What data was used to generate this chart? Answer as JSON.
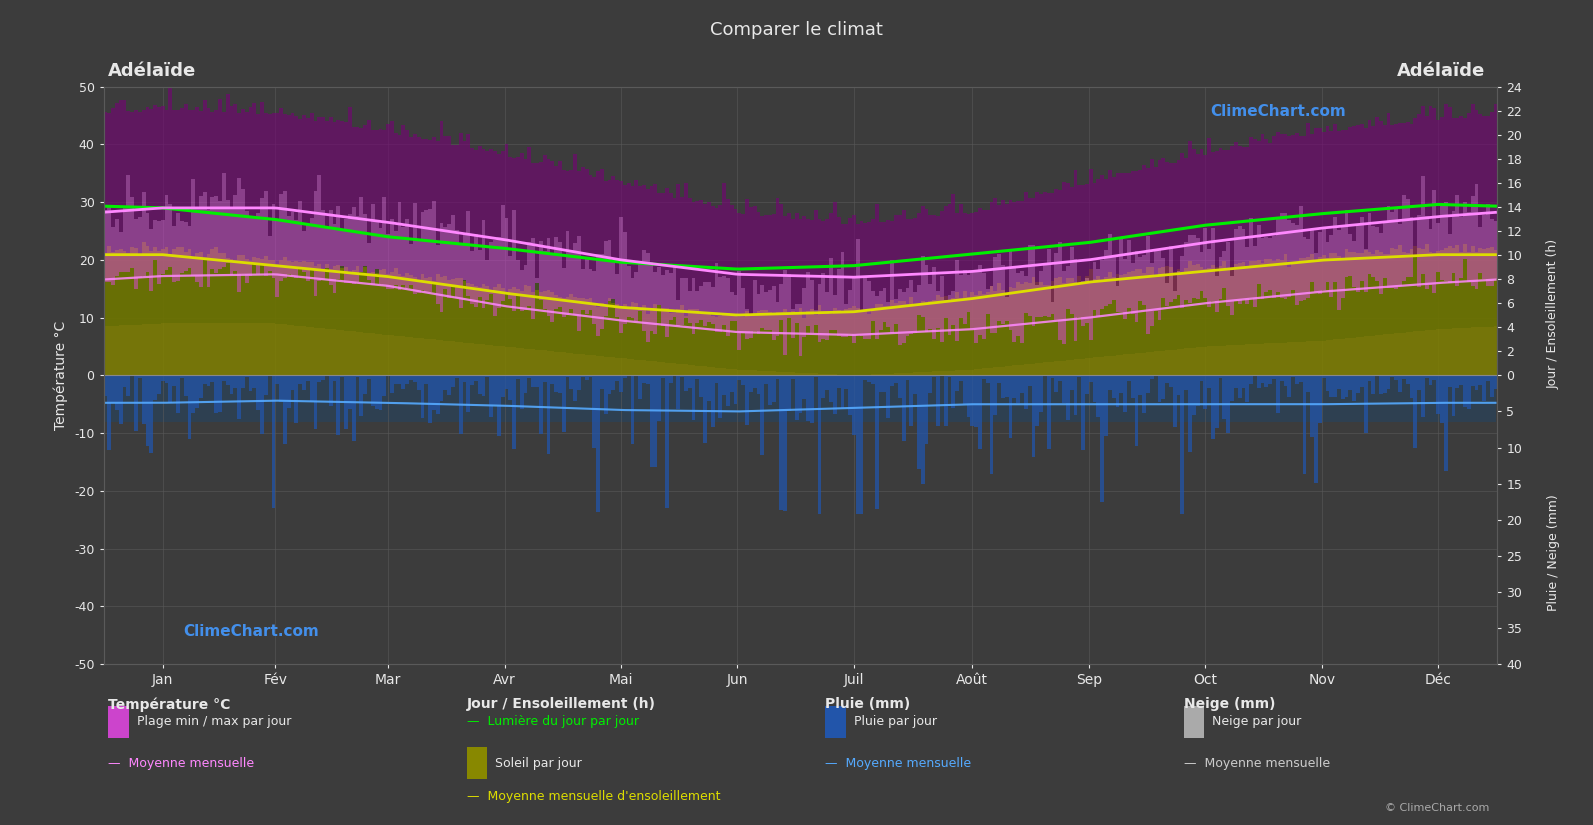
{
  "title": "Comparer le climat",
  "city_left": "Adélaïde",
  "city_right": "Adélaïde",
  "months": [
    "Jan",
    "Fév",
    "Mar",
    "Avr",
    "Mai",
    "Jun",
    "Juil",
    "Août",
    "Sep",
    "Oct",
    "Nov",
    "Déc"
  ],
  "days_per_month": [
    31,
    28,
    31,
    30,
    31,
    30,
    31,
    31,
    30,
    31,
    30,
    31
  ],
  "temp_ylim": [
    -50,
    50
  ],
  "bg_color": "#3c3c3c",
  "plot_bg_color": "#3c3c3c",
  "grid_color": "#5a5a5a",
  "text_color": "#e8e8e8",
  "temp_mean_monthly": [
    29.0,
    29.0,
    26.5,
    23.5,
    20.0,
    17.5,
    17.0,
    18.0,
    20.0,
    23.0,
    25.5,
    27.5
  ],
  "temp_min_monthly": [
    17.2,
    17.5,
    15.5,
    12.0,
    9.5,
    7.5,
    7.0,
    8.0,
    10.0,
    12.5,
    14.5,
    16.0
  ],
  "temp_max_monthly": [
    29.5,
    29.8,
    27.0,
    23.5,
    19.5,
    16.0,
    15.5,
    17.0,
    19.5,
    22.5,
    25.5,
    28.0
  ],
  "temp_abs_max_monthly": [
    46,
    45,
    42,
    38,
    33,
    28,
    26,
    28,
    33,
    38,
    42,
    44
  ],
  "temp_abs_min_monthly": [
    9,
    9,
    7,
    5,
    3,
    1,
    0,
    1,
    3,
    5,
    6,
    8
  ],
  "daylight_monthly": [
    14.5,
    13.5,
    12.0,
    11.0,
    9.8,
    9.2,
    9.5,
    10.5,
    11.5,
    13.0,
    14.0,
    14.8
  ],
  "sunshine_mean_monthly": [
    11.0,
    10.0,
    9.0,
    7.5,
    6.2,
    5.5,
    5.8,
    7.0,
    8.5,
    9.5,
    10.5,
    11.0
  ],
  "sunshine_daily_monthly": [
    11.5,
    10.5,
    9.5,
    8.0,
    6.5,
    5.5,
    6.0,
    7.5,
    9.0,
    10.0,
    11.0,
    11.5
  ],
  "rain_mean_monthly": [
    1.8,
    1.5,
    1.8,
    2.2,
    2.8,
    3.0,
    2.5,
    2.0,
    2.0,
    2.0,
    2.0,
    1.8
  ],
  "rain_max_monthly": [
    3.5,
    3.0,
    3.0,
    3.5,
    4.5,
    5.0,
    4.5,
    4.0,
    3.5,
    3.5,
    3.5,
    3.5
  ],
  "colors": {
    "abs_max_bar": "#990099",
    "daily_range_bar": "#cc44cc",
    "daily_min_bar": "#884400",
    "sunshine_bar": "#888800",
    "daylight_line": "#00ee00",
    "sunshine_line": "#dddd00",
    "temp_mean_line": "#ff88ff",
    "temp_min_line": "#ff88ff",
    "rain_bar": "#336699",
    "rain_mean_line": "#55aaff"
  },
  "sun_scale": 1.9,
  "rain_scale": 1.25,
  "rain_depth": 8.0
}
